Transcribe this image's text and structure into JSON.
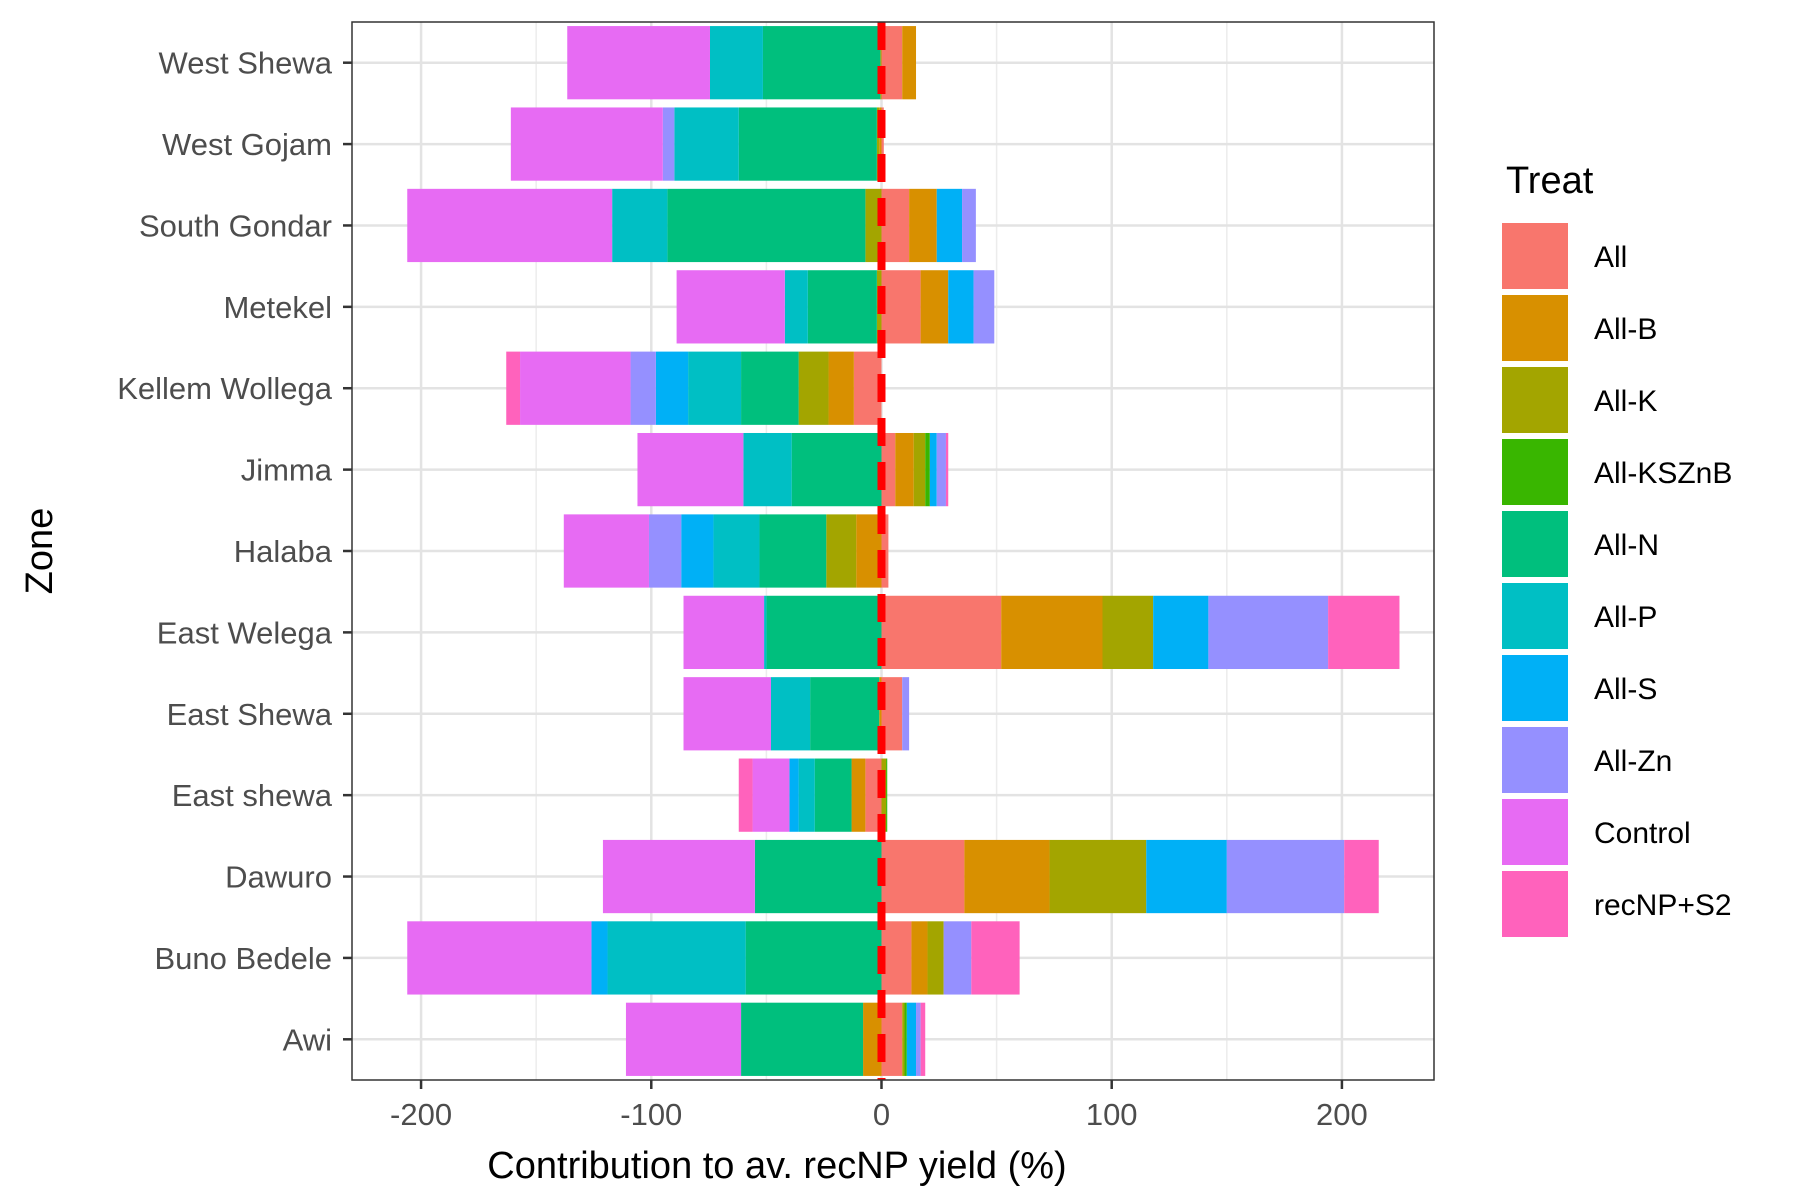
{
  "chart_data": {
    "type": "bar",
    "orientation": "horizontal",
    "stacked": "diverging",
    "title": "",
    "xlabel": "Contribution to av. recNP yield (%)",
    "ylabel": "Zone",
    "xlim": [
      -230,
      240
    ],
    "x_ticks": [
      -200,
      -100,
      0,
      100,
      200
    ],
    "x_tick_labels": [
      "-200",
      "-100",
      "0",
      "100",
      "200"
    ],
    "grid": true,
    "legend_title": "Treat",
    "legend_position": "right",
    "reference_line": {
      "x": 0,
      "color": "#ff0000",
      "style": "dashed"
    },
    "categories": [
      "West Shewa",
      "West Gojam",
      "South Gondar",
      "Metekel",
      "Kellem Wollega",
      "Jimma",
      "Halaba",
      "East Welega",
      "East Shewa",
      "East shewa",
      "Dawuro",
      "Buno  Bedele",
      "Awi"
    ],
    "series": [
      {
        "name": "All",
        "color": "#F8766D",
        "values": [
          9,
          1,
          12,
          17,
          -12,
          6,
          3,
          52,
          9,
          -7,
          36,
          13,
          9
        ]
      },
      {
        "name": "All-B",
        "color": "#D89000",
        "values": [
          6,
          -1,
          12,
          12,
          -11,
          8,
          -11,
          44,
          -1,
          -6,
          37,
          7,
          -8
        ]
      },
      {
        "name": "All-K",
        "color": "#A3A500",
        "values": [
          -0.5,
          -1,
          -7,
          -2,
          -13,
          5,
          -13,
          22,
          0,
          2,
          42,
          7,
          1
        ]
      },
      {
        "name": "All-KSZnB",
        "color": "#39B600",
        "values": [
          0,
          0,
          0,
          0,
          0,
          2,
          0,
          0,
          0,
          0.5,
          0,
          0,
          1
        ]
      },
      {
        "name": "All-N",
        "color": "#00BF7D",
        "values": [
          -51,
          -60,
          -86,
          -30,
          -25,
          -39,
          -29,
          -50,
          -30,
          -16,
          -55,
          -59,
          -53
        ]
      },
      {
        "name": "All-P",
        "color": "#00BFC4",
        "values": [
          -23,
          -28,
          -24,
          -10,
          -23,
          -21,
          -20,
          -1,
          -17,
          -7,
          0,
          -60,
          0
        ]
      },
      {
        "name": "All-S",
        "color": "#00B0F6",
        "values": [
          0,
          0,
          11,
          11,
          -14,
          3,
          -14,
          24,
          0,
          -4,
          35,
          -7,
          4
        ]
      },
      {
        "name": "All-Zn",
        "color": "#9590FF",
        "values": [
          0,
          -5,
          6,
          9,
          -11,
          4,
          -14,
          52,
          3,
          0,
          51,
          12,
          2
        ]
      },
      {
        "name": "Control",
        "color": "#E76BF3",
        "values": [
          -62,
          -66,
          -89,
          -47,
          -48,
          -46,
          -37,
          -35,
          -38,
          -16,
          -66,
          -80,
          -50
        ]
      },
      {
        "name": "recNP+S2",
        "color": "#FF62BC",
        "values": [
          0,
          0,
          0,
          0,
          -6,
          1,
          0,
          31,
          0,
          -6,
          15,
          21,
          2
        ]
      }
    ]
  }
}
